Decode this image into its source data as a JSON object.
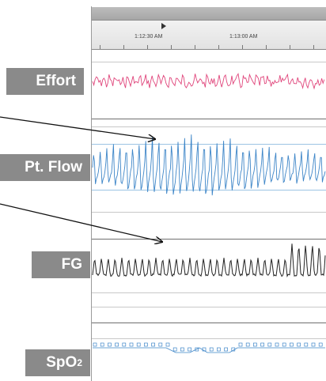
{
  "channels": {
    "effort": {
      "label": "Effort",
      "color": "#e0457b"
    },
    "pt_flow": {
      "label": "Pt. Flow",
      "color": "#3e86c8"
    },
    "fg": {
      "label": "FG",
      "color": "#222222"
    },
    "spo2": {
      "label_main": "SpO",
      "label_sub": "2",
      "color": "#3e86c8"
    }
  },
  "timeline": {
    "time1": "1:12:30 AM",
    "time2": "1:13:00 AM"
  },
  "icons": {
    "playhead": "play-marker-icon",
    "arrows": "annotation-arrow-icon"
  }
}
